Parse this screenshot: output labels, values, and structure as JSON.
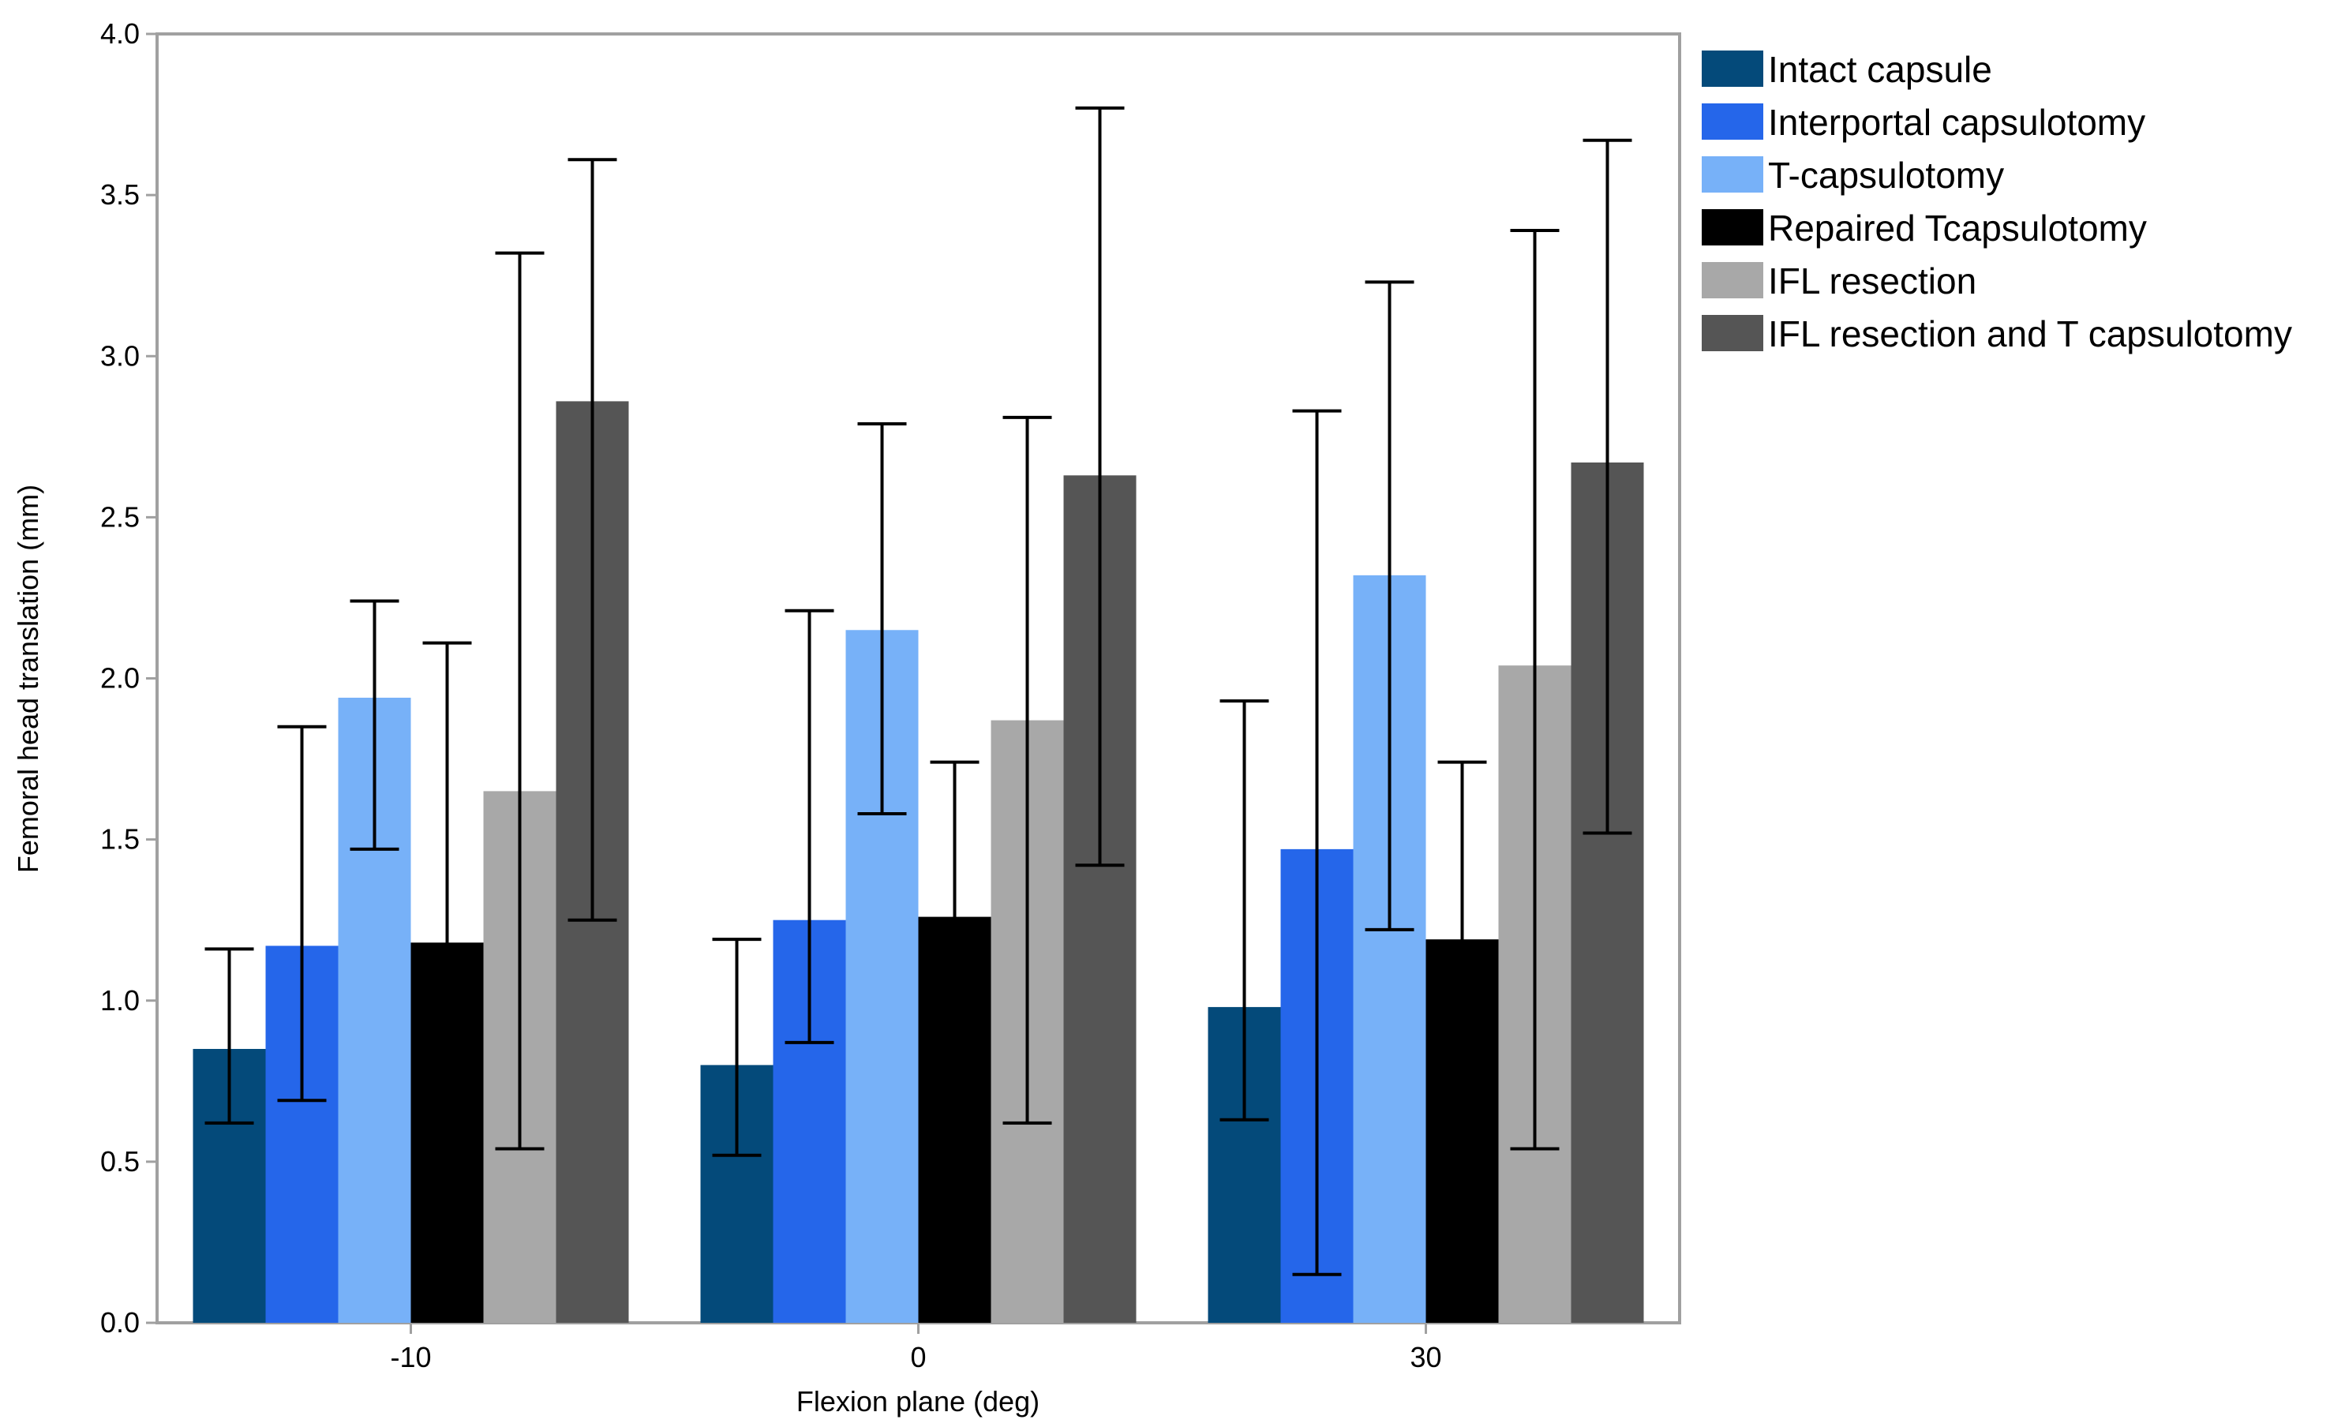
{
  "chart_data": {
    "type": "bar",
    "title": "",
    "xlabel": "Flexion plane (deg)",
    "ylabel": "Femoral head translation (mm)",
    "ylim": [
      0,
      4.0
    ],
    "yticks": [
      "0.0",
      "0.5",
      "1.0",
      "1.5",
      "2.0",
      "2.5",
      "3.0",
      "3.5",
      "4.0"
    ],
    "categories": [
      "-10",
      "0",
      "30"
    ],
    "grid": false,
    "legend_position": "right",
    "error_bars": true,
    "series": [
      {
        "name": "Intact capsule",
        "color": "#044a7a",
        "values": [
          0.85,
          0.8,
          0.98
        ],
        "err_low": [
          0.62,
          0.52,
          0.63
        ],
        "err_high": [
          1.16,
          1.19,
          1.93
        ]
      },
      {
        "name": "Interportal capsulotomy",
        "color": "#2566ea",
        "values": [
          1.17,
          1.25,
          1.47
        ],
        "err_low": [
          0.69,
          0.87,
          0.15
        ],
        "err_high": [
          1.85,
          2.21,
          2.83
        ]
      },
      {
        "name": "T-capsulotomy",
        "color": "#77b1f8",
        "values": [
          1.94,
          2.15,
          2.32
        ],
        "err_low": [
          1.47,
          1.58,
          1.22
        ],
        "err_high": [
          2.24,
          2.79,
          3.23
        ]
      },
      {
        "name": "Repaired Tcapsulotomy",
        "color": "#000000",
        "values": [
          1.18,
          1.26,
          1.19
        ],
        "err_low": [
          0.54,
          0.62,
          0.54
        ],
        "err_high": [
          2.11,
          1.74,
          1.74
        ]
      },
      {
        "name": "IFL resection",
        "color": "#a8a8a8",
        "values": [
          1.65,
          1.87,
          2.04
        ],
        "err_low": [
          0.54,
          0.62,
          0.54
        ],
        "err_high": [
          3.32,
          2.81,
          3.39
        ]
      },
      {
        "name": "IFL resection and T capsulotomy",
        "color": "#555555",
        "values": [
          2.86,
          2.63,
          2.67
        ],
        "err_low": [
          1.25,
          1.42,
          1.52
        ],
        "err_high": [
          3.61,
          3.77,
          3.67
        ]
      }
    ]
  }
}
